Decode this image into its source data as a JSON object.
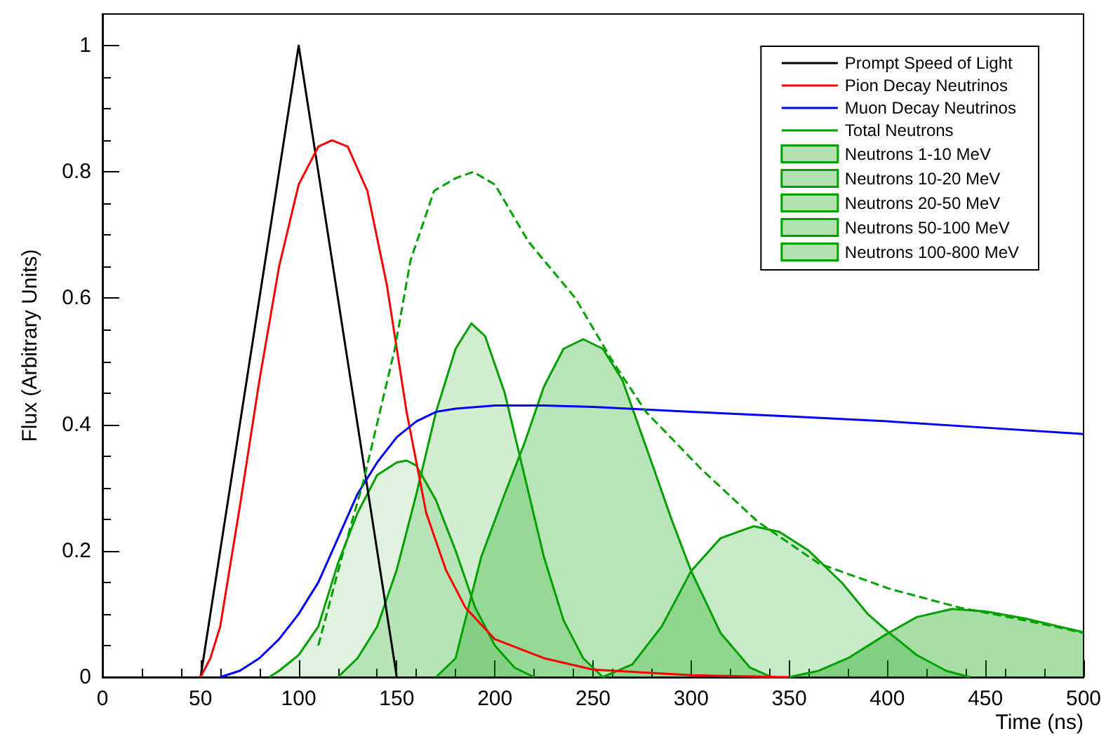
{
  "chart_data": {
    "type": "line",
    "xlabel": "Time (ns)",
    "ylabel": "Flux (Arbitrary Units)",
    "xlim": [
      0,
      500
    ],
    "xticks": [
      0,
      50,
      100,
      150,
      200,
      250,
      300,
      350,
      400,
      450,
      500
    ],
    "ylim": [
      0,
      1.05
    ],
    "yticks": [
      0,
      0.2,
      0.4,
      0.6,
      0.8,
      1
    ],
    "grid": false,
    "legend": "top right",
    "marker": "none",
    "series": [
      {
        "name": "Prompt Speed of Light",
        "type": "line",
        "color": "#000000",
        "x": [
          50,
          100,
          150
        ],
        "values": [
          0,
          1,
          0
        ]
      },
      {
        "name": "Pion Decay Neutrinos",
        "type": "line",
        "color": "#ff0000",
        "x": [
          50,
          55,
          60,
          70,
          80,
          90,
          100,
          110,
          117,
          125,
          135,
          145,
          155,
          165,
          175,
          185,
          200,
          225,
          250,
          300,
          350
        ],
        "values": [
          0,
          0.03,
          0.08,
          0.27,
          0.47,
          0.65,
          0.78,
          0.84,
          0.85,
          0.84,
          0.77,
          0.62,
          0.42,
          0.26,
          0.17,
          0.11,
          0.06,
          0.03,
          0.012,
          0.003,
          0
        ]
      },
      {
        "name": "Muon Decay Neutrinos",
        "type": "line",
        "color": "#0000ff",
        "x": [
          60,
          70,
          80,
          90,
          100,
          110,
          120,
          130,
          140,
          150,
          160,
          170,
          180,
          200,
          225,
          250,
          300,
          350,
          400,
          450,
          500
        ],
        "values": [
          0,
          0.01,
          0.03,
          0.06,
          0.1,
          0.15,
          0.22,
          0.29,
          0.34,
          0.38,
          0.405,
          0.42,
          0.425,
          0.43,
          0.43,
          0.428,
          0.42,
          0.413,
          0.405,
          0.395,
          0.385
        ]
      },
      {
        "name": "Total Neutrons",
        "type": "line",
        "line_style": "dashed",
        "color": "#00a000",
        "x": [
          110,
          122,
          133,
          149,
          157,
          169,
          180,
          189,
          200,
          217,
          241,
          260,
          277,
          305,
          334,
          365,
          401,
          437,
          470,
          500
        ],
        "values": [
          0.05,
          0.19,
          0.31,
          0.52,
          0.66,
          0.77,
          0.79,
          0.8,
          0.78,
          0.69,
          0.6,
          0.5,
          0.42,
          0.33,
          0.246,
          0.18,
          0.14,
          0.11,
          0.09,
          0.07
        ]
      },
      {
        "name": "Neutrons 1-10 MeV",
        "type": "area",
        "color": "#00a000",
        "x": [
          350,
          365,
          380,
          399,
          415,
          433,
          450,
          470,
          485,
          500
        ],
        "values": [
          0,
          0.01,
          0.03,
          0.067,
          0.095,
          0.108,
          0.104,
          0.093,
          0.082,
          0.071
        ]
      },
      {
        "name": "Neutrons 10-20 MeV",
        "type": "area",
        "color": "#00a000",
        "x": [
          255,
          270,
          285,
          300,
          315,
          332,
          345,
          360,
          377,
          390,
          401,
          415,
          430,
          442
        ],
        "values": [
          0,
          0.02,
          0.08,
          0.168,
          0.22,
          0.239,
          0.23,
          0.2,
          0.149,
          0.1,
          0.07,
          0.035,
          0.01,
          0
        ]
      },
      {
        "name": "Neutrons 20-50 MeV",
        "type": "area",
        "color": "#00a000",
        "x": [
          170,
          180,
          193,
          205,
          215,
          225,
          235,
          245,
          255,
          265,
          281,
          290,
          300,
          315,
          330,
          341
        ],
        "values": [
          0,
          0.03,
          0.19,
          0.29,
          0.37,
          0.46,
          0.52,
          0.535,
          0.52,
          0.47,
          0.33,
          0.25,
          0.168,
          0.07,
          0.015,
          0
        ]
      },
      {
        "name": "Neutrons 50-100 MeV",
        "type": "area",
        "color": "#00a000",
        "x": [
          120,
          130,
          140,
          150,
          160,
          170,
          180,
          188,
          195,
          205,
          215,
          225,
          235,
          245,
          255
        ],
        "values": [
          0,
          0.03,
          0.08,
          0.17,
          0.29,
          0.42,
          0.52,
          0.56,
          0.54,
          0.45,
          0.32,
          0.19,
          0.09,
          0.03,
          0
        ]
      },
      {
        "name": "Neutrons 100-800 MeV",
        "type": "area",
        "color": "#00a000",
        "x": [
          85,
          90,
          100,
          110,
          120,
          130,
          140,
          150,
          155,
          160,
          170,
          180,
          190,
          200,
          210,
          220
        ],
        "values": [
          0,
          0.01,
          0.035,
          0.08,
          0.18,
          0.26,
          0.32,
          0.34,
          0.343,
          0.335,
          0.28,
          0.2,
          0.11,
          0.05,
          0.015,
          0
        ]
      }
    ]
  }
}
